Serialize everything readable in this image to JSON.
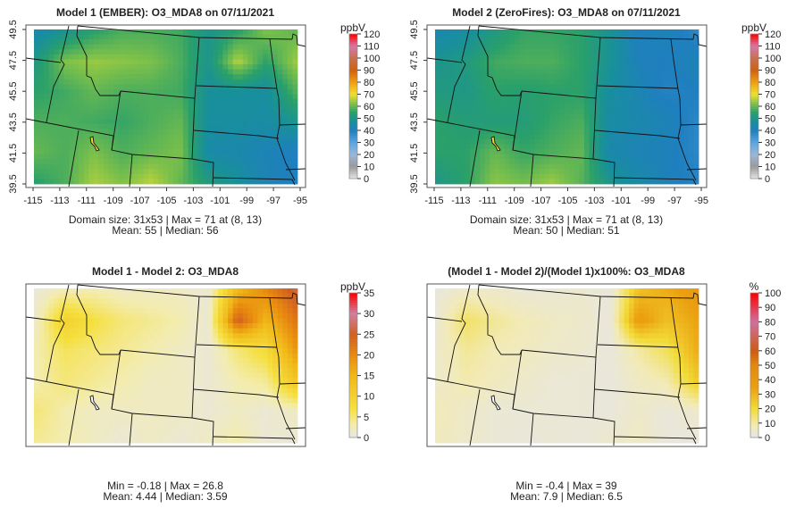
{
  "chart_data": [
    {
      "type": "heatmap",
      "title": "Model 1 (EMBER): O3_MDA8 on 07/11/2021",
      "unit": "ppbV",
      "scale": "conc",
      "colorbar_ticks": [
        "0",
        "10",
        "20",
        "30",
        "40",
        "50",
        "60",
        "70",
        "80",
        "90",
        "100",
        "110",
        "120"
      ],
      "crange": [
        0,
        120
      ],
      "xticks": [
        "-115",
        "-113",
        "-111",
        "-109",
        "-107",
        "-105",
        "-103",
        "-101",
        "-99",
        "-97",
        "-95"
      ],
      "yticks": [
        "39.5",
        "41.5",
        "43.5",
        "45.5",
        "47.5",
        "49.5"
      ],
      "xlim": [
        -115,
        -95
      ],
      "ylim": [
        39.5,
        49.5
      ],
      "show_axes": true,
      "stats_line1": "Domain size: 31x53 | Max = 71 at (8, 13)",
      "stats_line2": "Mean: 55 |  Median: 56",
      "grid_approx": [
        [
          45,
          50,
          55,
          58,
          58,
          57,
          50,
          55,
          62,
          60
        ],
        [
          52,
          62,
          64,
          63,
          62,
          58,
          50,
          66,
          55,
          64
        ],
        [
          55,
          57,
          60,
          58,
          58,
          57,
          48,
          48,
          47,
          58
        ],
        [
          58,
          58,
          57,
          56,
          58,
          60,
          47,
          47,
          46,
          50
        ],
        [
          60,
          58,
          62,
          58,
          60,
          62,
          45,
          44,
          42,
          40
        ],
        [
          55,
          58,
          65,
          62,
          66,
          60,
          52,
          48,
          42,
          40
        ]
      ]
    },
    {
      "type": "heatmap",
      "title": "Model 2 (ZeroFires): O3_MDA8 on 07/11/2021",
      "unit": "ppbV",
      "scale": "conc",
      "colorbar_ticks": [
        "0",
        "10",
        "20",
        "30",
        "40",
        "50",
        "60",
        "70",
        "80",
        "90",
        "100",
        "110",
        "120"
      ],
      "crange": [
        0,
        120
      ],
      "xticks": [
        "-115",
        "-113",
        "-111",
        "-109",
        "-107",
        "-105",
        "-103",
        "-101",
        "-99",
        "-97",
        "-95"
      ],
      "yticks": [
        "39.5",
        "41.5",
        "43.5",
        "45.5",
        "47.5",
        "49.5"
      ],
      "xlim": [
        -115,
        -95
      ],
      "ylim": [
        39.5,
        49.5
      ],
      "show_axes": true,
      "stats_line1": "Domain size: 31x53 | Max = 71 at (8, 13)",
      "stats_line2": "Mean: 50 |  Median: 51",
      "grid_approx": [
        [
          44,
          47,
          52,
          56,
          56,
          55,
          49,
          40,
          42,
          38
        ],
        [
          50,
          52,
          57,
          58,
          58,
          55,
          49,
          41,
          40,
          42
        ],
        [
          52,
          51,
          55,
          54,
          55,
          55,
          47,
          43,
          39,
          40
        ],
        [
          55,
          53,
          53,
          53,
          56,
          58,
          46,
          44,
          42,
          38
        ],
        [
          55,
          55,
          60,
          56,
          58,
          60,
          44,
          42,
          41,
          38
        ],
        [
          51,
          55,
          63,
          61,
          64,
          59,
          50,
          45,
          41,
          39
        ]
      ]
    },
    {
      "type": "heatmap",
      "title": "Model 1 - Model 2: O3_MDA8",
      "unit": "ppbV",
      "scale": "diff",
      "colorbar_ticks": [
        "0",
        "5",
        "10",
        "15",
        "20",
        "25",
        "30",
        "35"
      ],
      "crange": [
        0,
        35
      ],
      "show_axes": false,
      "stats_line1": "Min = -0.18 | Max = 26.8",
      "stats_line2": "Mean: 4.44 |  Median: 3.59",
      "grid_approx": [
        [
          1,
          3,
          3,
          2,
          2,
          2,
          1,
          15,
          20,
          26
        ],
        [
          2,
          10,
          7,
          5,
          4,
          3,
          1,
          25,
          15,
          22
        ],
        [
          3,
          6,
          5,
          4,
          3,
          2,
          1,
          5,
          8,
          18
        ],
        [
          3,
          5,
          4,
          3,
          2,
          2,
          1,
          3,
          4,
          12
        ],
        [
          5,
          3,
          2,
          2,
          2,
          2,
          1,
          2,
          1,
          2
        ],
        [
          4,
          3,
          2,
          1,
          2,
          1,
          2,
          3,
          1,
          1
        ]
      ]
    },
    {
      "type": "heatmap",
      "title": "(Model 1 - Model 2)/(Model 1)x100%: O3_MDA8",
      "unit": "%",
      "scale": "pct",
      "colorbar_ticks": [
        "0",
        "10",
        "20",
        "30",
        "40",
        "50",
        "60",
        "70",
        "80",
        "90",
        "100"
      ],
      "crange": [
        0,
        100
      ],
      "show_axes": false,
      "stats_line1": "Min = -0.4 | Max = 39",
      "stats_line2": "Mean: 7.9 |  Median: 6.5",
      "grid_approx": [
        [
          2,
          6,
          5,
          3,
          3,
          4,
          2,
          27,
          32,
          39
        ],
        [
          4,
          16,
          11,
          8,
          6,
          5,
          2,
          38,
          27,
          34
        ],
        [
          5,
          11,
          8,
          7,
          5,
          4,
          2,
          10,
          17,
          31
        ],
        [
          5,
          9,
          7,
          5,
          3,
          3,
          2,
          6,
          9,
          24
        ],
        [
          8,
          5,
          3,
          3,
          3,
          3,
          2,
          5,
          2,
          5
        ],
        [
          7,
          5,
          3,
          2,
          3,
          2,
          4,
          6,
          2,
          2
        ]
      ]
    }
  ]
}
